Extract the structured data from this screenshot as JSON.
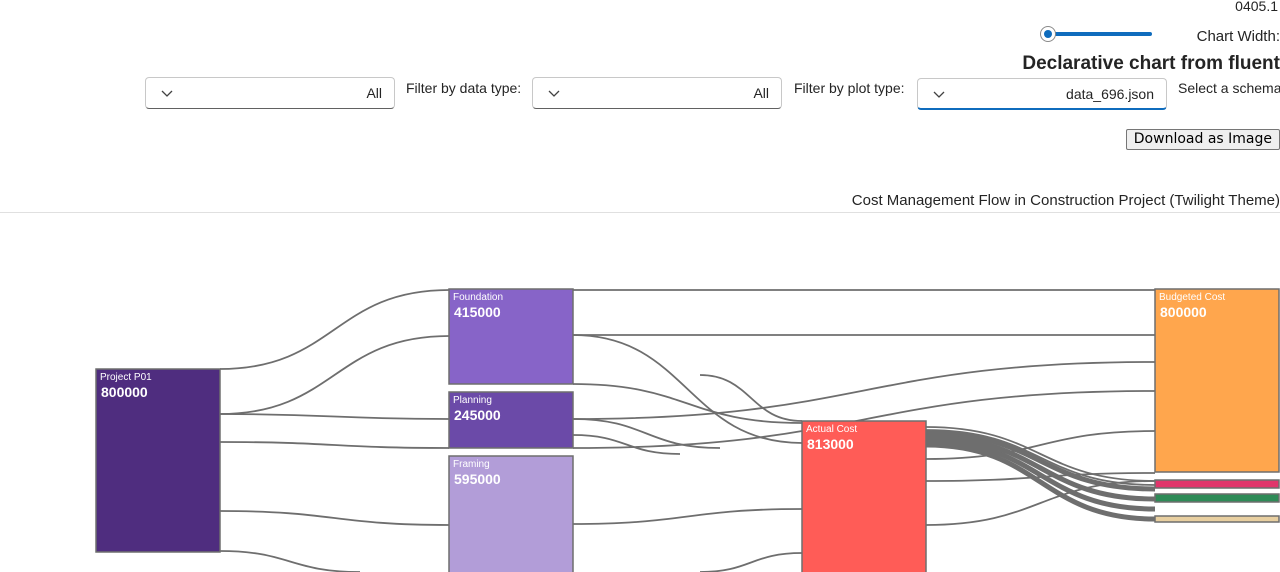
{
  "app": {
    "version": "0405.1",
    "chart_width_label": ":Chart Width",
    "chart_width_value": 0,
    "title": "Declarative chart from fluent"
  },
  "controls": {
    "schema_label": ":Select a schema",
    "schema_value": "data_696.json",
    "plot_type_label": ":Filter by plot type",
    "plot_type_value": "All",
    "data_type_label": ":Filter by data type",
    "data_type_value": "All",
    "download_label": "Download as Image"
  },
  "icons": {
    "dropdown": "chevron-down-icon"
  },
  "colors": {
    "accent": "#0f6cbd",
    "link": "#6e6e6e",
    "nodes": [
      "#4f2d7f",
      "#8764c8",
      "#6b4aa8",
      "#b29dd8",
      "#ff5c57",
      "#ffa64d",
      "#e0356b",
      "#2e8b57",
      "#e8cfa0"
    ]
  },
  "chart_data": {
    "type": "sankey",
    "title": "Cost Management Flow in Construction Project (Twilight Theme)",
    "nodes": [
      {
        "name": "Project P01",
        "value": 800000
      },
      {
        "name": "Foundation",
        "value": 415000
      },
      {
        "name": "Planning",
        "value": 245000
      },
      {
        "name": "Framing",
        "value": 595000
      },
      {
        "name": "Actual Cost",
        "value": 813000
      },
      {
        "name": "Budgeted Cost",
        "value": 800000
      },
      {
        "name": "",
        "value": null
      },
      {
        "name": "",
        "value": null
      },
      {
        "name": "",
        "value": null
      }
    ]
  }
}
